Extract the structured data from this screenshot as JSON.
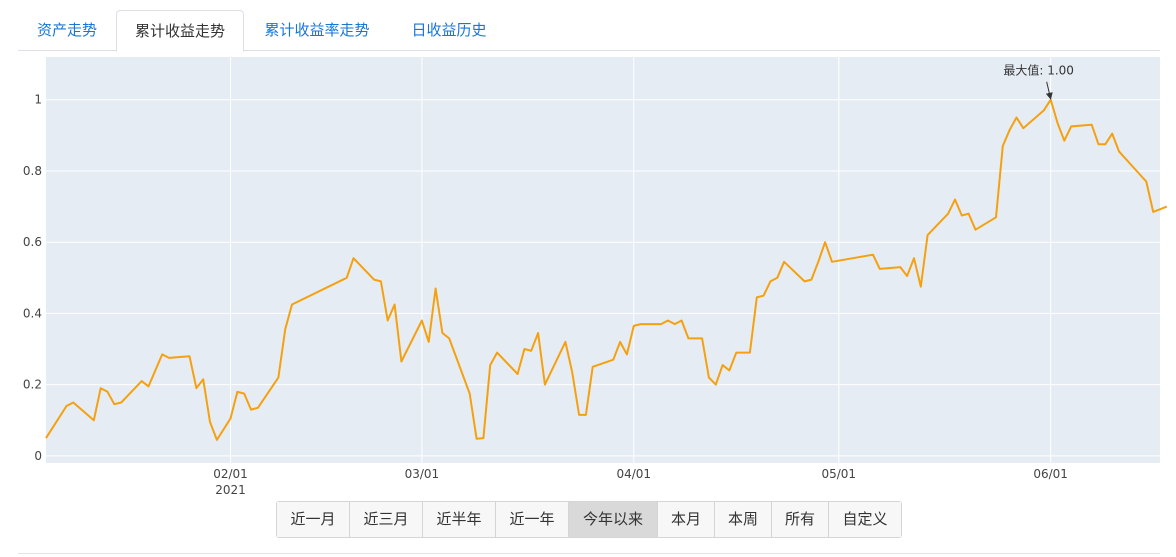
{
  "tabs": [
    {
      "label": "资产走势"
    },
    {
      "label": "累计收益走势"
    },
    {
      "label": "累计收益率走势"
    },
    {
      "label": "日收益历史"
    }
  ],
  "active_tab": 1,
  "ranges": [
    {
      "label": "近一月"
    },
    {
      "label": "近三月"
    },
    {
      "label": "近半年"
    },
    {
      "label": "近一年"
    },
    {
      "label": "今年以来"
    },
    {
      "label": "本月"
    },
    {
      "label": "本周"
    },
    {
      "label": "所有"
    },
    {
      "label": "自定义"
    }
  ],
  "active_range": 4,
  "colors": {
    "line": "#f5a10f",
    "plot_bg": "#e6ecf4",
    "grid": "#ffffff",
    "tab_link": "#1677d6"
  },
  "chart_data": {
    "type": "line",
    "xlim": [
      "2021-01-05",
      "2021-06-17"
    ],
    "ylim": [
      -0.02,
      1.12
    ],
    "grid": true,
    "x_ticks": [
      {
        "date": "2021-02-01",
        "label": "02/01",
        "sublabel": "2021"
      },
      {
        "date": "2021-03-01",
        "label": "03/01",
        "sublabel": ""
      },
      {
        "date": "2021-04-01",
        "label": "04/01",
        "sublabel": ""
      },
      {
        "date": "2021-05-01",
        "label": "05/01",
        "sublabel": ""
      },
      {
        "date": "2021-06-01",
        "label": "06/01",
        "sublabel": ""
      }
    ],
    "y_ticks": [
      {
        "value": 0,
        "label": "0"
      },
      {
        "value": 0.2,
        "label": "0.2"
      },
      {
        "value": 0.4,
        "label": "0.4"
      },
      {
        "value": 0.6,
        "label": "0.6"
      },
      {
        "value": 0.8,
        "label": "0.8"
      },
      {
        "value": 1,
        "label": "1"
      }
    ],
    "annotation": {
      "text": "最大值: 1.00",
      "date": "2021-06-01",
      "value": 1.0
    },
    "series": [
      {
        "points": [
          [
            "2021-01-05",
            0.05
          ],
          [
            "2021-01-08",
            0.14
          ],
          [
            "2021-01-09",
            0.15
          ],
          [
            "2021-01-12",
            0.1
          ],
          [
            "2021-01-13",
            0.19
          ],
          [
            "2021-01-14",
            0.18
          ],
          [
            "2021-01-15",
            0.145
          ],
          [
            "2021-01-16",
            0.15
          ],
          [
            "2021-01-19",
            0.21
          ],
          [
            "2021-01-20",
            0.195
          ],
          [
            "2021-01-22",
            0.285
          ],
          [
            "2021-01-23",
            0.275
          ],
          [
            "2021-01-26",
            0.28
          ],
          [
            "2021-01-27",
            0.19
          ],
          [
            "2021-01-28",
            0.215
          ],
          [
            "2021-01-29",
            0.095
          ],
          [
            "2021-01-30",
            0.045
          ],
          [
            "2021-02-01",
            0.105
          ],
          [
            "2021-02-02",
            0.18
          ],
          [
            "2021-02-03",
            0.175
          ],
          [
            "2021-02-04",
            0.13
          ],
          [
            "2021-02-05",
            0.135
          ],
          [
            "2021-02-08",
            0.22
          ],
          [
            "2021-02-09",
            0.355
          ],
          [
            "2021-02-10",
            0.425
          ],
          [
            "2021-02-18",
            0.5
          ],
          [
            "2021-02-19",
            0.555
          ],
          [
            "2021-02-22",
            0.495
          ],
          [
            "2021-02-23",
            0.49
          ],
          [
            "2021-02-24",
            0.38
          ],
          [
            "2021-02-25",
            0.425
          ],
          [
            "2021-02-26",
            0.265
          ],
          [
            "2021-03-01",
            0.38
          ],
          [
            "2021-03-02",
            0.32
          ],
          [
            "2021-03-03",
            0.47
          ],
          [
            "2021-03-04",
            0.345
          ],
          [
            "2021-03-05",
            0.33
          ],
          [
            "2021-03-08",
            0.175
          ],
          [
            "2021-03-09",
            0.048
          ],
          [
            "2021-03-10",
            0.05
          ],
          [
            "2021-03-11",
            0.255
          ],
          [
            "2021-03-12",
            0.29
          ],
          [
            "2021-03-15",
            0.23
          ],
          [
            "2021-03-16",
            0.3
          ],
          [
            "2021-03-17",
            0.295
          ],
          [
            "2021-03-18",
            0.345
          ],
          [
            "2021-03-19",
            0.2
          ],
          [
            "2021-03-22",
            0.32
          ],
          [
            "2021-03-23",
            0.235
          ],
          [
            "2021-03-24",
            0.115
          ],
          [
            "2021-03-25",
            0.115
          ],
          [
            "2021-03-26",
            0.25
          ],
          [
            "2021-03-29",
            0.27
          ],
          [
            "2021-03-30",
            0.32
          ],
          [
            "2021-03-31",
            0.285
          ],
          [
            "2021-04-01",
            0.365
          ],
          [
            "2021-04-02",
            0.37
          ],
          [
            "2021-04-05",
            0.37
          ],
          [
            "2021-04-06",
            0.38
          ],
          [
            "2021-04-07",
            0.37
          ],
          [
            "2021-04-08",
            0.38
          ],
          [
            "2021-04-09",
            0.33
          ],
          [
            "2021-04-11",
            0.33
          ],
          [
            "2021-04-12",
            0.22
          ],
          [
            "2021-04-13",
            0.2
          ],
          [
            "2021-04-14",
            0.255
          ],
          [
            "2021-04-15",
            0.24
          ],
          [
            "2021-04-16",
            0.29
          ],
          [
            "2021-04-18",
            0.29
          ],
          [
            "2021-04-19",
            0.445
          ],
          [
            "2021-04-20",
            0.45
          ],
          [
            "2021-04-21",
            0.49
          ],
          [
            "2021-04-22",
            0.5
          ],
          [
            "2021-04-23",
            0.545
          ],
          [
            "2021-04-26",
            0.49
          ],
          [
            "2021-04-27",
            0.495
          ],
          [
            "2021-04-28",
            0.545
          ],
          [
            "2021-04-29",
            0.6
          ],
          [
            "2021-04-30",
            0.545
          ],
          [
            "2021-05-06",
            0.565
          ],
          [
            "2021-05-07",
            0.525
          ],
          [
            "2021-05-10",
            0.53
          ],
          [
            "2021-05-11",
            0.505
          ],
          [
            "2021-05-12",
            0.555
          ],
          [
            "2021-05-13",
            0.475
          ],
          [
            "2021-05-14",
            0.62
          ],
          [
            "2021-05-17",
            0.68
          ],
          [
            "2021-05-18",
            0.72
          ],
          [
            "2021-05-19",
            0.675
          ],
          [
            "2021-05-20",
            0.68
          ],
          [
            "2021-05-21",
            0.635
          ],
          [
            "2021-05-24",
            0.67
          ],
          [
            "2021-05-25",
            0.87
          ],
          [
            "2021-05-26",
            0.915
          ],
          [
            "2021-05-27",
            0.95
          ],
          [
            "2021-05-28",
            0.92
          ],
          [
            "2021-05-31",
            0.97
          ],
          [
            "2021-06-01",
            1.0
          ],
          [
            "2021-06-02",
            0.935
          ],
          [
            "2021-06-03",
            0.885
          ],
          [
            "2021-06-04",
            0.925
          ],
          [
            "2021-06-07",
            0.93
          ],
          [
            "2021-06-08",
            0.875
          ],
          [
            "2021-06-09",
            0.875
          ],
          [
            "2021-06-10",
            0.905
          ],
          [
            "2021-06-11",
            0.855
          ],
          [
            "2021-06-15",
            0.77
          ],
          [
            "2021-06-16",
            0.685
          ],
          [
            "2021-06-18",
            0.7
          ]
        ]
      }
    ]
  }
}
